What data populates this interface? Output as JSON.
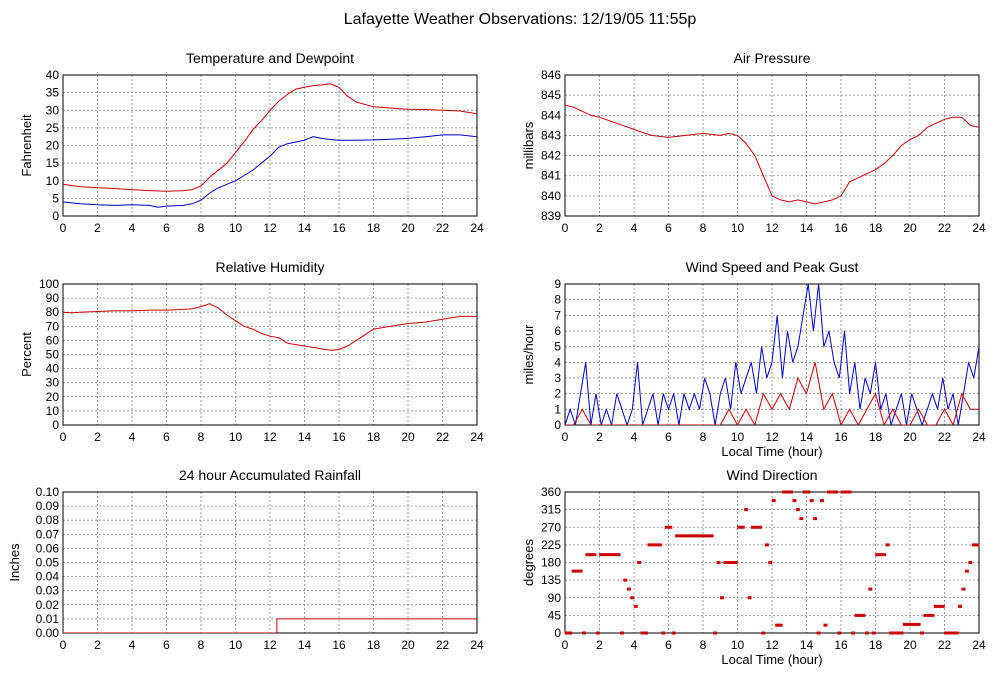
{
  "page": {
    "title": "Lafayette Weather Observations: 12/19/05 11:55p"
  },
  "colors": {
    "series_a": "#cc0000",
    "series_b": "#0000cc",
    "grid": "#808080",
    "axis": "#000000"
  },
  "chart_data": [
    {
      "id": "temperature",
      "type": "line",
      "title": "Temperature and Dewpoint",
      "xlabel": "",
      "ylabel": "Fahrenheit",
      "xlim": [
        0,
        24
      ],
      "ylim": [
        0,
        40
      ],
      "xticks": [
        0,
        2,
        4,
        6,
        8,
        10,
        12,
        14,
        16,
        18,
        20,
        22,
        24
      ],
      "yticks": [
        0,
        5,
        10,
        15,
        20,
        25,
        30,
        35,
        40
      ],
      "grid": true,
      "series": [
        {
          "color": "#cc0000",
          "x": [
            0,
            1,
            2,
            3,
            4,
            5,
            6,
            7,
            7.5,
            8,
            8.5,
            9,
            9.5,
            10,
            10.5,
            11,
            11.5,
            12,
            12.5,
            13,
            13.5,
            14,
            14.5,
            15,
            15.5,
            16,
            16.5,
            17,
            18,
            19,
            20,
            21,
            22,
            23,
            24
          ],
          "y": [
            9,
            8.3,
            8,
            7.8,
            7.5,
            7.2,
            7,
            7.2,
            7.5,
            8.5,
            11,
            13,
            15,
            18,
            21,
            24.5,
            27,
            30,
            32.5,
            34.5,
            36,
            36.5,
            37,
            37.2,
            37.5,
            36.5,
            34,
            32.3,
            31,
            30.6,
            30.3,
            30.2,
            30,
            29.8,
            29
          ]
        },
        {
          "color": "#0000cc",
          "x": [
            0,
            1,
            2,
            3,
            4,
            5,
            5.5,
            6,
            7,
            7.5,
            8,
            8.5,
            9,
            9.5,
            10,
            10.5,
            11,
            11.5,
            12,
            12.5,
            13,
            13.5,
            14,
            14.5,
            15,
            15.5,
            16,
            17,
            18,
            19,
            20,
            21,
            22,
            23,
            24
          ],
          "y": [
            4,
            3.5,
            3.2,
            3,
            3.2,
            3,
            2.5,
            2.8,
            3,
            3.5,
            4.5,
            6.5,
            8,
            9,
            10,
            11.5,
            13,
            15,
            17,
            19.5,
            20.5,
            21,
            21.5,
            22.5,
            22,
            21.7,
            21.5,
            21.5,
            21.6,
            21.8,
            22,
            22.5,
            23,
            23,
            22.5
          ]
        }
      ]
    },
    {
      "id": "pressure",
      "type": "line",
      "title": "Air Pressure",
      "xlabel": "",
      "ylabel": "millibars",
      "xlim": [
        0,
        24
      ],
      "ylim": [
        839,
        846
      ],
      "xticks": [
        0,
        2,
        4,
        6,
        8,
        10,
        12,
        14,
        16,
        18,
        20,
        22,
        24
      ],
      "yticks": [
        839,
        840,
        841,
        842,
        843,
        844,
        845,
        846
      ],
      "grid": true,
      "series": [
        {
          "color": "#cc0000",
          "x": [
            0,
            0.5,
            1,
            1.5,
            2,
            3,
            4,
            5,
            6,
            7,
            8,
            9,
            9.5,
            10,
            10.5,
            11,
            11.5,
            12,
            12.5,
            13,
            13.5,
            14,
            14.5,
            15,
            15.5,
            16,
            16.5,
            17,
            17.5,
            18,
            18.5,
            19,
            19.5,
            20,
            20.5,
            21,
            21.5,
            22,
            22.5,
            23,
            23.5,
            24
          ],
          "y": [
            844.5,
            844.4,
            844.2,
            844,
            843.9,
            843.6,
            843.3,
            843,
            842.9,
            843,
            843.1,
            843,
            843.1,
            843,
            842.6,
            842,
            841,
            840,
            839.8,
            839.7,
            839.8,
            839.7,
            839.6,
            839.7,
            839.8,
            840,
            840.7,
            840.9,
            841.1,
            841.3,
            841.6,
            842,
            842.5,
            842.8,
            843,
            843.4,
            843.6,
            843.8,
            843.9,
            843.9,
            843.5,
            843.4
          ]
        }
      ]
    },
    {
      "id": "humidity",
      "type": "line",
      "title": "Relative Humidity",
      "xlabel": "",
      "ylabel": "Percent",
      "xlim": [
        0,
        24
      ],
      "ylim": [
        0,
        100
      ],
      "xticks": [
        0,
        2,
        4,
        6,
        8,
        10,
        12,
        14,
        16,
        18,
        20,
        22,
        24
      ],
      "yticks": [
        0,
        10,
        20,
        30,
        40,
        50,
        60,
        70,
        80,
        90,
        100
      ],
      "grid": true,
      "series": [
        {
          "color": "#cc0000",
          "x": [
            0,
            0.5,
            1,
            2,
            3,
            4,
            5,
            6,
            7,
            7.5,
            8,
            8.5,
            9,
            9.5,
            10,
            10.5,
            11,
            11.5,
            12,
            12.5,
            13,
            13.5,
            14,
            14.5,
            15,
            15.5,
            16,
            16.5,
            17,
            17.5,
            18,
            19,
            20,
            21,
            22,
            23,
            24
          ],
          "y": [
            80,
            79.5,
            80,
            80.5,
            81,
            81,
            81.5,
            81.5,
            82,
            82.5,
            84,
            86,
            83,
            78,
            74,
            70,
            68,
            65,
            63,
            62,
            58,
            57,
            56,
            55,
            54,
            53,
            53.5,
            56,
            60,
            64,
            68,
            70,
            72,
            73,
            75,
            77,
            77
          ]
        }
      ]
    },
    {
      "id": "wind_speed",
      "type": "line",
      "title": "Wind Speed and Peak Gust",
      "xlabel": "Local Time (hour)",
      "ylabel": "miles/hour",
      "xlim": [
        0,
        24
      ],
      "ylim": [
        0,
        9
      ],
      "xticks": [
        0,
        2,
        4,
        6,
        8,
        10,
        12,
        14,
        16,
        18,
        20,
        22,
        24
      ],
      "yticks": [
        0,
        1,
        2,
        3,
        4,
        5,
        6,
        7,
        8,
        9
      ],
      "grid": true,
      "series": [
        {
          "color": "#0000cc",
          "x": [
            0,
            0.3,
            0.6,
            0.9,
            1.2,
            1.5,
            1.8,
            2.1,
            2.4,
            2.7,
            3,
            3.3,
            3.6,
            3.9,
            4.2,
            4.5,
            4.8,
            5.1,
            5.4,
            5.7,
            6,
            6.3,
            6.6,
            6.9,
            7.2,
            7.5,
            7.8,
            8.1,
            8.4,
            8.7,
            9,
            9.3,
            9.6,
            9.9,
            10.2,
            10.5,
            10.8,
            11.1,
            11.4,
            11.7,
            12,
            12.3,
            12.6,
            12.9,
            13.2,
            13.5,
            13.8,
            14.1,
            14.4,
            14.7,
            15,
            15.3,
            15.6,
            15.9,
            16.2,
            16.5,
            16.8,
            17.1,
            17.4,
            17.7,
            18,
            18.3,
            18.6,
            18.9,
            19.2,
            19.5,
            19.8,
            20.1,
            20.4,
            20.7,
            21,
            21.3,
            21.6,
            21.9,
            22.2,
            22.5,
            22.8,
            23.1,
            23.4,
            23.7,
            24
          ],
          "y": [
            0,
            1,
            0,
            2,
            4,
            0,
            2,
            0,
            1,
            0,
            2,
            1,
            0,
            1,
            4,
            0,
            1,
            2,
            0,
            2,
            1,
            2,
            0,
            2,
            1,
            2,
            1,
            3,
            2,
            0,
            2,
            3,
            1,
            4,
            2,
            3,
            4,
            2,
            5,
            3,
            4,
            7,
            3,
            6,
            4,
            5,
            7,
            9,
            6,
            9,
            5,
            6,
            4,
            3,
            6,
            2,
            4,
            1,
            3,
            2,
            4,
            1,
            2,
            0,
            1,
            2,
            0,
            2,
            1,
            0,
            1,
            2,
            1,
            3,
            1,
            2,
            0,
            2,
            4,
            3,
            5
          ]
        },
        {
          "color": "#cc0000",
          "x": [
            0,
            0.5,
            1,
            1.5,
            2,
            2.5,
            3,
            3.5,
            4,
            4.5,
            5,
            5.5,
            6,
            6.5,
            7,
            7.5,
            8,
            8.5,
            9,
            9.5,
            10,
            10.5,
            11,
            11.5,
            12,
            12.5,
            13,
            13.5,
            14,
            14.5,
            15,
            15.5,
            16,
            16.5,
            17,
            17.5,
            18,
            18.5,
            19,
            19.5,
            20,
            20.5,
            21,
            21.5,
            22,
            22.5,
            23,
            23.5,
            24
          ],
          "y": [
            0,
            0,
            1,
            0,
            0,
            0,
            0,
            0,
            0,
            0,
            0,
            0,
            0,
            0,
            0,
            0,
            0,
            0,
            0,
            1,
            0,
            1,
            0,
            2,
            1,
            2,
            1,
            3,
            2,
            4,
            1,
            2,
            0,
            1,
            0,
            1,
            2,
            0,
            1,
            0,
            0,
            1,
            0,
            0,
            1,
            0,
            2,
            1,
            1
          ]
        }
      ]
    },
    {
      "id": "rainfall",
      "type": "line",
      "title": "24 hour Accumulated Rainfall",
      "xlabel": "",
      "ylabel": "Inches",
      "xlim": [
        0,
        24
      ],
      "ylim": [
        0,
        0.1
      ],
      "xticks": [
        0,
        2,
        4,
        6,
        8,
        10,
        12,
        14,
        16,
        18,
        20,
        22,
        24
      ],
      "yticks": [
        "0.00",
        "0.01",
        "0.02",
        "0.03",
        "0.04",
        "0.05",
        "0.06",
        "0.07",
        "0.08",
        "0.09",
        "0.10"
      ],
      "grid": true,
      "series": [
        {
          "color": "#cc0000",
          "x": [
            0,
            12.4,
            12.4,
            24
          ],
          "y": [
            0,
            0,
            0.01,
            0.01
          ]
        }
      ]
    },
    {
      "id": "wind_direction",
      "type": "scatter",
      "title": "Wind Direction",
      "xlabel": "Local Time (hour)",
      "ylabel": "degrees",
      "xlim": [
        0,
        24
      ],
      "ylim": [
        0,
        360
      ],
      "xticks": [
        0,
        2,
        4,
        6,
        8,
        10,
        12,
        14,
        16,
        18,
        20,
        22,
        24
      ],
      "yticks": [
        0,
        45,
        90,
        135,
        180,
        225,
        270,
        315,
        360
      ],
      "grid": true,
      "series": [
        {
          "color": "#cc0000",
          "x": [
            0.1,
            0.3,
            0.5,
            0.7,
            0.9,
            1.1,
            1.3,
            1.5,
            1.7,
            1.9,
            2.1,
            2.3,
            2.5,
            2.7,
            2.9,
            3.1,
            3.3,
            3.5,
            3.7,
            3.9,
            4.1,
            4.3,
            4.5,
            4.7,
            4.9,
            5.1,
            5.3,
            5.5,
            5.7,
            5.9,
            6.1,
            6.3,
            6.5,
            6.7,
            6.9,
            7.1,
            7.3,
            7.5,
            7.7,
            7.9,
            8.1,
            8.3,
            8.5,
            8.7,
            8.9,
            9.1,
            9.3,
            9.5,
            9.7,
            9.9,
            10.1,
            10.3,
            10.5,
            10.7,
            10.9,
            11.1,
            11.3,
            11.5,
            11.7,
            11.9,
            12.1,
            12.3,
            12.5,
            12.7,
            12.9,
            13.1,
            13.3,
            13.5,
            13.7,
            13.9,
            14.1,
            14.3,
            14.5,
            14.7,
            14.9,
            15.1,
            15.3,
            15.5,
            15.7,
            15.9,
            16.1,
            16.3,
            16.5,
            16.7,
            16.9,
            17.1,
            17.3,
            17.5,
            17.7,
            17.9,
            18.1,
            18.3,
            18.5,
            18.7,
            18.9,
            19.1,
            19.3,
            19.5,
            19.7,
            19.9,
            20.1,
            20.3,
            20.5,
            20.7,
            20.9,
            21.1,
            21.3,
            21.5,
            21.7,
            21.9,
            22.1,
            22.3,
            22.5,
            22.7,
            22.9,
            23.1,
            23.3,
            23.5,
            23.7,
            23.9
          ],
          "y": [
            0,
            0,
            158,
            158,
            158,
            0,
            200,
            200,
            200,
            0,
            200,
            200,
            200,
            200,
            200,
            200,
            0,
            135,
            112,
            90,
            68,
            180,
            0,
            0,
            225,
            225,
            225,
            225,
            0,
            270,
            270,
            0,
            248,
            248,
            248,
            248,
            248,
            248,
            248,
            248,
            248,
            248,
            248,
            0,
            180,
            90,
            180,
            180,
            180,
            180,
            270,
            270,
            315,
            90,
            270,
            270,
            270,
            0,
            225,
            180,
            338,
            20,
            20,
            360,
            360,
            360,
            338,
            315,
            292,
            360,
            360,
            338,
            292,
            0,
            338,
            20,
            360,
            360,
            360,
            0,
            360,
            360,
            360,
            0,
            45,
            45,
            45,
            0,
            112,
            0,
            200,
            200,
            200,
            225,
            0,
            0,
            0,
            0,
            22,
            22,
            22,
            22,
            22,
            0,
            45,
            45,
            45,
            68,
            68,
            68,
            0,
            0,
            0,
            0,
            68,
            112,
            158,
            180,
            225,
            225
          ]
        }
      ]
    }
  ]
}
